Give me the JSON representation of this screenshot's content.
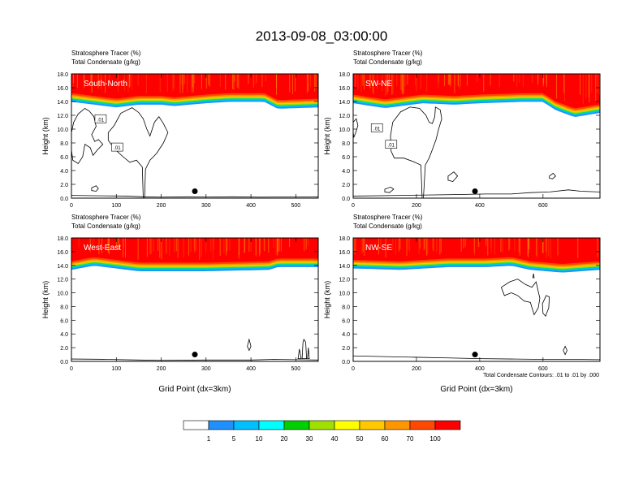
{
  "figure": {
    "title": "2013-09-08_03:00:00",
    "left_label_1": "Stratosphere Tracer",
    "left_label_1_unit": "(%)",
    "left_label_2": "Total Condensate",
    "left_label_2_unit": "(g/kg)",
    "contour_note": "Total Condensate Contours: .01 to .01 by .000"
  },
  "colorbar": {
    "levels": [
      "1",
      "5",
      "10",
      "20",
      "30",
      "40",
      "50",
      "60",
      "70",
      "100"
    ],
    "colors": [
      "#ffffff",
      "#1e90ff",
      "#00bfff",
      "#00ffff",
      "#00e080",
      "#00d000",
      "#a0e000",
      "#ffff00",
      "#ffc800",
      "#ff9600",
      "#ff4800",
      "#ff0000"
    ]
  },
  "chart_data": [
    {
      "type": "heatmap",
      "panel_label": "South-North",
      "xlabel": "",
      "ylabel": "Height (km)",
      "xlim": [
        0,
        550
      ],
      "ylim": [
        0,
        18
      ],
      "xticks": [
        0,
        100,
        200,
        300,
        400,
        500
      ],
      "yticks": [
        "0.0",
        "2.0",
        "4.0",
        "6.0",
        "8.0",
        "10.0",
        "12.0",
        "14.0",
        "16.0",
        "18.0"
      ],
      "tropopause_km": [
        [
          0,
          15.2
        ],
        [
          100,
          14.4
        ],
        [
          150,
          14.8
        ],
        [
          200,
          14.8
        ],
        [
          230,
          14.6
        ],
        [
          300,
          15.0
        ],
        [
          350,
          15.2
        ],
        [
          430,
          15.2
        ],
        [
          460,
          14.2
        ],
        [
          550,
          14.4
        ]
      ],
      "contour_labels": [
        ".01",
        ".01"
      ],
      "marker": {
        "x": 275,
        "y": 1.0
      }
    },
    {
      "type": "heatmap",
      "panel_label": "SW-NE",
      "xlabel": "",
      "ylabel": "Height (km)",
      "xlim": [
        0,
        780
      ],
      "ylim": [
        0,
        18
      ],
      "xticks": [
        0,
        200,
        400,
        600
      ],
      "yticks": [
        "0.0",
        "2.0",
        "4.0",
        "6.0",
        "8.0",
        "10.0",
        "12.0",
        "14.0",
        "16.0",
        "18.0"
      ],
      "tropopause_km": [
        [
          0,
          15.0
        ],
        [
          100,
          14.3
        ],
        [
          220,
          15.0
        ],
        [
          320,
          14.8
        ],
        [
          400,
          15.0
        ],
        [
          530,
          15.2
        ],
        [
          600,
          15.2
        ],
        [
          640,
          14.0
        ],
        [
          700,
          13.0
        ],
        [
          780,
          13.6
        ]
      ],
      "contour_labels": [
        ".01",
        ".01"
      ],
      "marker": {
        "x": 385,
        "y": 1.0
      }
    },
    {
      "type": "heatmap",
      "panel_label": "West-East",
      "xlabel": "Grid Point (dx=3km)",
      "ylabel": "Height (km)",
      "xlim": [
        0,
        550
      ],
      "ylim": [
        0,
        18
      ],
      "xticks": [
        0,
        100,
        200,
        300,
        400,
        500
      ],
      "yticks": [
        "0.0",
        "2.0",
        "4.0",
        "6.0",
        "8.0",
        "10.0",
        "12.0",
        "14.0",
        "16.0",
        "18.0"
      ],
      "tropopause_km": [
        [
          0,
          14.6
        ],
        [
          50,
          15.2
        ],
        [
          150,
          14.4
        ],
        [
          300,
          14.4
        ],
        [
          440,
          14.6
        ],
        [
          460,
          15.0
        ],
        [
          550,
          15.0
        ]
      ],
      "contour_labels": [],
      "marker": {
        "x": 275,
        "y": 1.0
      }
    },
    {
      "type": "heatmap",
      "panel_label": "NW-SE",
      "xlabel": "Grid Point (dx=3km)",
      "ylabel": "Height (km)",
      "xlim": [
        0,
        780
      ],
      "ylim": [
        0,
        18
      ],
      "xticks": [
        0,
        200,
        400,
        600
      ],
      "yticks": [
        "0.0",
        "2.0",
        "4.0",
        "6.0",
        "8.0",
        "10.0",
        "12.0",
        "14.0",
        "16.0",
        "18.0"
      ],
      "tropopause_km": [
        [
          0,
          14.8
        ],
        [
          150,
          14.6
        ],
        [
          300,
          15.0
        ],
        [
          420,
          15.0
        ],
        [
          500,
          15.2
        ],
        [
          560,
          14.6
        ],
        [
          660,
          14.2
        ],
        [
          780,
          14.6
        ]
      ],
      "contour_labels": [],
      "marker": {
        "x": 385,
        "y": 1.0
      }
    }
  ]
}
